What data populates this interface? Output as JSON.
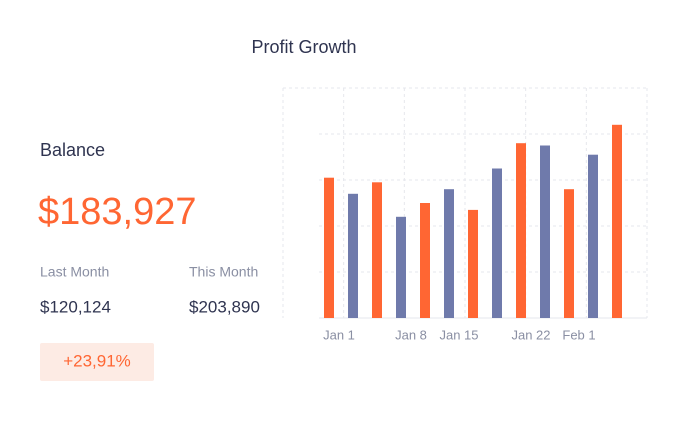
{
  "title": "Profit Growth",
  "balance": {
    "label": "Balance",
    "amount": "$183,927",
    "last_month_label": "Last Month",
    "last_month": "$120,124",
    "this_month_label": "This Month",
    "this_month": "$203,890",
    "change": "+23,91%"
  },
  "chart_data": {
    "type": "bar",
    "categories": [
      "Jan 1",
      null,
      null,
      "Jan 8",
      null,
      "Jan 15",
      null,
      null,
      "Jan 22",
      null,
      "Feb 1",
      null,
      null
    ],
    "values": [
      61,
      54,
      59,
      44,
      50,
      56,
      47,
      65,
      76,
      75,
      56,
      71,
      84
    ],
    "colors": [
      "#ff6633",
      "#6f7aab",
      "#ff6633",
      "#6f7aab",
      "#ff6633",
      "#6f7aab",
      "#ff6633",
      "#6f7aab",
      "#ff6633",
      "#6f7aab",
      "#ff6633",
      "#6f7aab",
      "#ff6633"
    ],
    "ylim": [
      0,
      100
    ],
    "grid": true
  }
}
